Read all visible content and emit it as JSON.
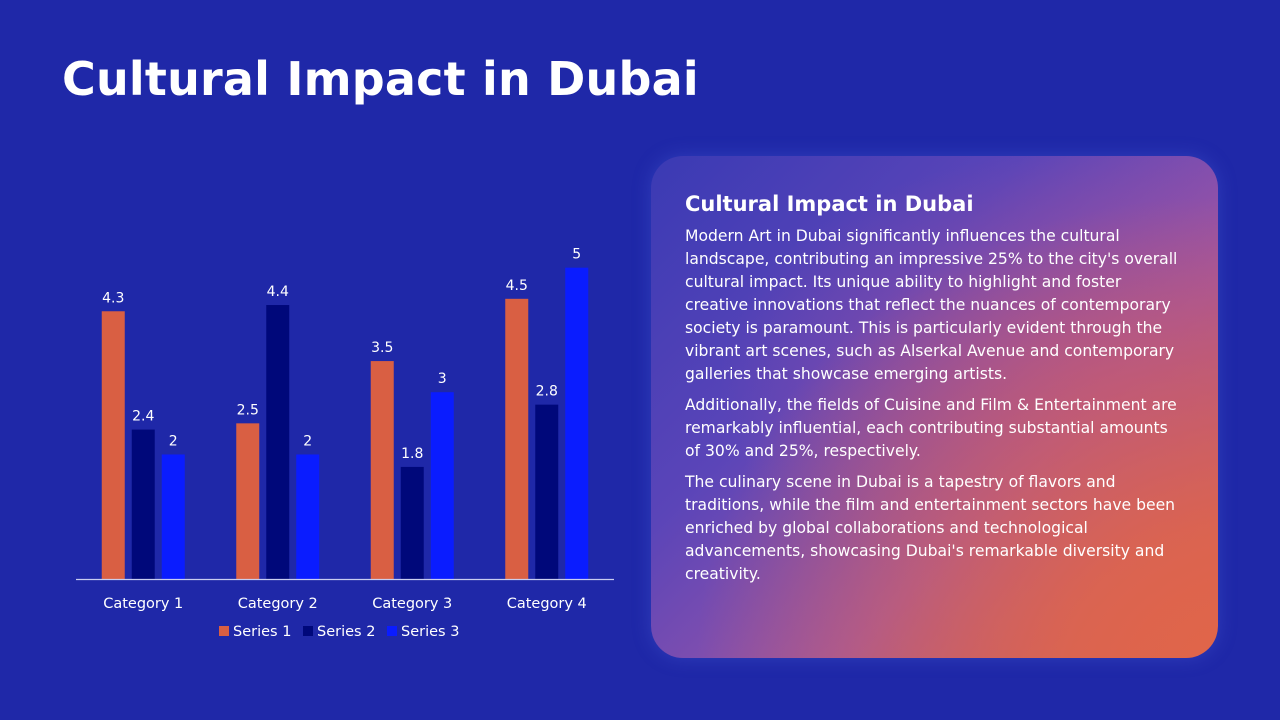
{
  "slide": {
    "title": "Cultural Impact in Dubai",
    "background_color": "#1f28a8"
  },
  "panel": {
    "heading": "Cultural Impact in Dubai",
    "paragraphs": [
      "Modern Art in Dubai significantly influences the cultural landscape, contributing an impressive 25% to the city's overall cultural impact. Its unique ability to highlight and foster creative innovations that reflect the nuances of contemporary society is paramount. This is particularly evident through the vibrant art scenes, such as Alserkal Avenue and contemporary galleries that showcase emerging artists.",
      "Additionally, the fields of Cuisine and Film & Entertainment are remarkably influential, each contributing substantial amounts of 30% and 25%, respectively.",
      "The culinary scene in Dubai is a tapestry of flavors and traditions, while the film and entertainment sectors have been enriched by global collaborations and technological advancements, showcasing Dubai's remarkable diversity and creativity."
    ]
  },
  "chart_data": {
    "type": "bar",
    "categories": [
      "Category 1",
      "Category 2",
      "Category 3",
      "Category 4"
    ],
    "series": [
      {
        "name": "Series 1",
        "values": [
          4.3,
          2.5,
          3.5,
          4.5
        ],
        "color": "#d95f43"
      },
      {
        "name": "Series 2",
        "values": [
          2.4,
          4.4,
          1.8,
          2.8
        ],
        "color": "#00087a"
      },
      {
        "name": "Series 3",
        "values": [
          2,
          2,
          3,
          5
        ],
        "color": "#0a1cff"
      }
    ],
    "ylim": [
      0,
      5.3
    ],
    "grid": false,
    "legend_position": "bottom",
    "data_labels": true
  }
}
